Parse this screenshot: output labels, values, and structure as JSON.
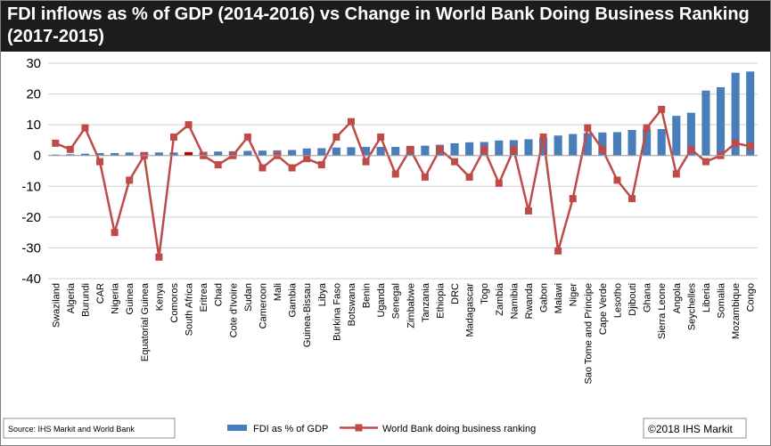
{
  "chart_data": {
    "type": "bar",
    "title": "FDI inflows  as % of GDP (2014-2016) vs Change in World Bank Doing Business Ranking (2017-2015)",
    "xlabel": "",
    "ylabel": "",
    "ylim": [
      -40,
      30
    ],
    "yticks": [
      -40,
      -30,
      -20,
      -10,
      0,
      10,
      20,
      30
    ],
    "grid": true,
    "legend_position": "bottom",
    "categories": [
      "Swaziland",
      "Algeria",
      "Burundi",
      "CAR",
      "Nigeria",
      "Guinea",
      "Equatorial Guinea",
      "Kenya",
      "Comoros",
      "South Africa",
      "Eritrea",
      "Chad",
      "Cote d'Ivoire",
      "Sudan",
      "Cameroon",
      "Mali",
      "Gambia",
      "Guinea-Bissau",
      "Libya",
      "Burkina Faso",
      "Botswana",
      "Benin",
      "Uganda",
      "Senegal",
      "Zimbabwe",
      "Tanzania",
      "Ethiopia",
      "DRC",
      "Madagascar",
      "Togo",
      "Zambia",
      "Namibia",
      "Rwanda",
      "Gabon",
      "Malawi",
      "Niger",
      "Sao Tome and Principe",
      "Cape Verde",
      "Lesotho",
      "Djibouti",
      "Ghana",
      "Sierra Leone",
      "Angola",
      "Seychelles",
      "Liberia",
      "Somalia",
      "Mozambique",
      "Congo"
    ],
    "series": [
      {
        "name": "FDI as % of GDP",
        "kind": "bar",
        "color": "#4a7ebb",
        "highlight_color": "#c00000",
        "highlight_category": "South Africa",
        "values": [
          0.3,
          0.4,
          0.6,
          0.8,
          0.8,
          1.0,
          1.0,
          1.0,
          1.0,
          1.1,
          1.2,
          1.3,
          1.4,
          1.5,
          1.6,
          1.7,
          1.8,
          2.3,
          2.4,
          2.6,
          2.7,
          2.8,
          2.8,
          2.8,
          3.0,
          3.2,
          3.5,
          4.0,
          4.3,
          4.4,
          4.9,
          5.0,
          5.3,
          5.7,
          6.5,
          7.0,
          7.3,
          7.5,
          7.6,
          8.3,
          8.5,
          8.6,
          12.9,
          13.9,
          21.1,
          22.2,
          26.9,
          27.3
        ]
      },
      {
        "name": "World Bank doing business ranking",
        "kind": "line",
        "color": "#be4b48",
        "values": [
          4,
          2,
          9,
          -2,
          -25,
          -8,
          0,
          -33,
          6,
          10,
          0,
          -3,
          0,
          6,
          -4,
          0,
          -4,
          -1,
          -3,
          6,
          11,
          -2,
          6,
          -6,
          2,
          -7,
          2,
          -2,
          -7,
          2,
          -9,
          2,
          -18,
          6,
          -31,
          -14,
          9,
          2,
          -8,
          -14,
          9,
          15,
          -6,
          2,
          -2,
          0,
          4,
          3
        ]
      }
    ],
    "source": "Source: IHS Markit and World Bank",
    "copyright": "©2018 IHS Markit"
  }
}
